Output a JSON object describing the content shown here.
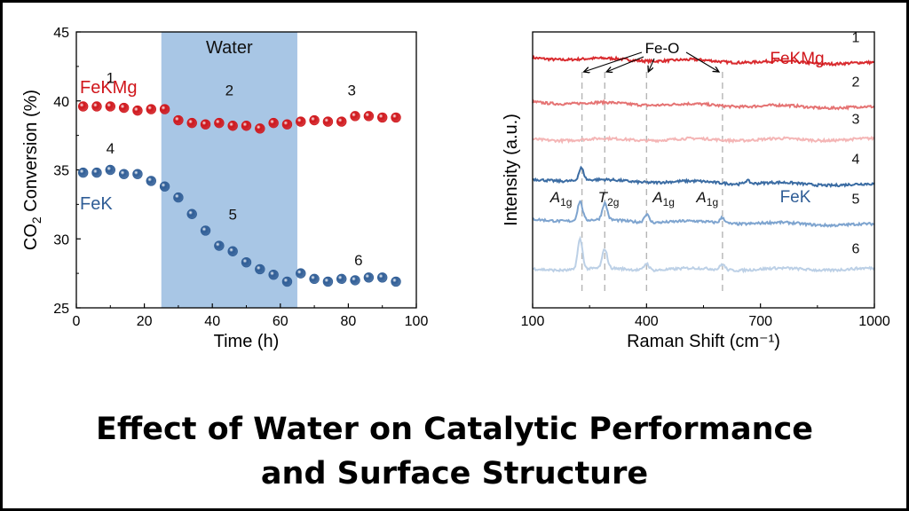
{
  "page": {
    "caption_line1": "Effect of Water on Catalytic Performance",
    "caption_line2": "and Surface Structure"
  },
  "chart_data": [
    {
      "type": "scatter",
      "xlabel": "Time (h)",
      "ylabel_parts": [
        "CO",
        "2",
        " Conversion (%)"
      ],
      "xlim": [
        0,
        100
      ],
      "ylim": [
        25,
        45
      ],
      "xticks": [
        "0",
        "20",
        "40",
        "60",
        "80",
        "100"
      ],
      "yticks": [
        "25",
        "30",
        "35",
        "40",
        "45"
      ],
      "shaded_region": {
        "x_start": 25,
        "x_end": 65,
        "label": "Water",
        "color": "#a8c6e5"
      },
      "series": [
        {
          "name": "FeKMg",
          "color": "#d0161b",
          "x": [
            2,
            6,
            10,
            14,
            18,
            22,
            26,
            30,
            34,
            38,
            42,
            46,
            50,
            54,
            58,
            62,
            66,
            70,
            74,
            78,
            82,
            86,
            90,
            94
          ],
          "y": [
            39.6,
            39.6,
            39.6,
            39.5,
            39.3,
            39.4,
            39.4,
            38.6,
            38.4,
            38.3,
            38.4,
            38.2,
            38.2,
            38.0,
            38.4,
            38.3,
            38.5,
            38.6,
            38.5,
            38.5,
            38.9,
            38.9,
            38.8,
            38.8
          ]
        },
        {
          "name": "FeK",
          "color": "#2f5d96",
          "x": [
            2,
            6,
            10,
            14,
            18,
            22,
            26,
            30,
            34,
            38,
            42,
            46,
            50,
            54,
            58,
            62,
            66,
            70,
            74,
            78,
            82,
            86,
            90,
            94
          ],
          "y": [
            34.8,
            34.8,
            35.0,
            34.7,
            34.7,
            34.2,
            33.8,
            33.0,
            31.8,
            30.6,
            29.5,
            29.1,
            28.3,
            27.8,
            27.4,
            26.9,
            27.5,
            27.1,
            26.9,
            27.1,
            27.0,
            27.2,
            27.2,
            26.9
          ]
        }
      ],
      "annotations": [
        {
          "text": "1",
          "x": 10,
          "y": 41.3
        },
        {
          "text": "2",
          "x": 45,
          "y": 40.4
        },
        {
          "text": "3",
          "x": 81,
          "y": 40.4
        },
        {
          "text": "4",
          "x": 10,
          "y": 36.2
        },
        {
          "text": "5",
          "x": 46,
          "y": 31.4
        },
        {
          "text": "6",
          "x": 83,
          "y": 28.1
        }
      ]
    },
    {
      "type": "line",
      "xlabel": "Raman Shift (cm⁻¹)",
      "ylabel": "Intensity (a.u.)",
      "xlim": [
        100,
        1000
      ],
      "xticks": [
        "100",
        "400",
        "700",
        "1000"
      ],
      "group_labels": [
        {
          "text": "FeKMg",
          "color": "#d0161b"
        },
        {
          "text": "FeK",
          "color": "#2f5d96"
        }
      ],
      "feo_label": "Fe-O",
      "reference_lines_cm": [
        230,
        290,
        400,
        600
      ],
      "peak_labels": [
        {
          "main": "A",
          "sub": "1g",
          "x_cm": 175
        },
        {
          "main": "T",
          "sub": "2g",
          "x_cm": 300
        },
        {
          "main": "A",
          "sub": "1g",
          "x_cm": 445
        },
        {
          "main": "A",
          "sub": "1g",
          "x_cm": 560
        }
      ],
      "series": [
        {
          "name": "1",
          "color": "#d92b2f",
          "baseline": 0.905,
          "slope": 0.02,
          "peaks": []
        },
        {
          "name": "2",
          "color": "#e57373",
          "baseline": 0.745,
          "slope": 0.02,
          "peaks": []
        },
        {
          "name": "3",
          "color": "#f4b5b5",
          "baseline": 0.61,
          "slope": 0.0,
          "peaks": []
        },
        {
          "name": "4",
          "color": "#3b6ca3",
          "baseline": 0.465,
          "slope": 0.02,
          "peaks": [
            [
              228,
              0.045
            ],
            [
              665,
              0.012
            ]
          ]
        },
        {
          "name": "5",
          "color": "#7ea4cf",
          "baseline": 0.32,
          "slope": 0.02,
          "peaks": [
            [
              225,
              0.07
            ],
            [
              290,
              0.06
            ],
            [
              400,
              0.03
            ],
            [
              600,
              0.02
            ]
          ]
        },
        {
          "name": "6",
          "color": "#bcd0e6",
          "baseline": 0.14,
          "slope": 0.0,
          "peaks": [
            [
              225,
              0.11
            ],
            [
              290,
              0.07
            ],
            [
              400,
              0.025
            ],
            [
              600,
              0.02
            ]
          ]
        }
      ]
    }
  ]
}
